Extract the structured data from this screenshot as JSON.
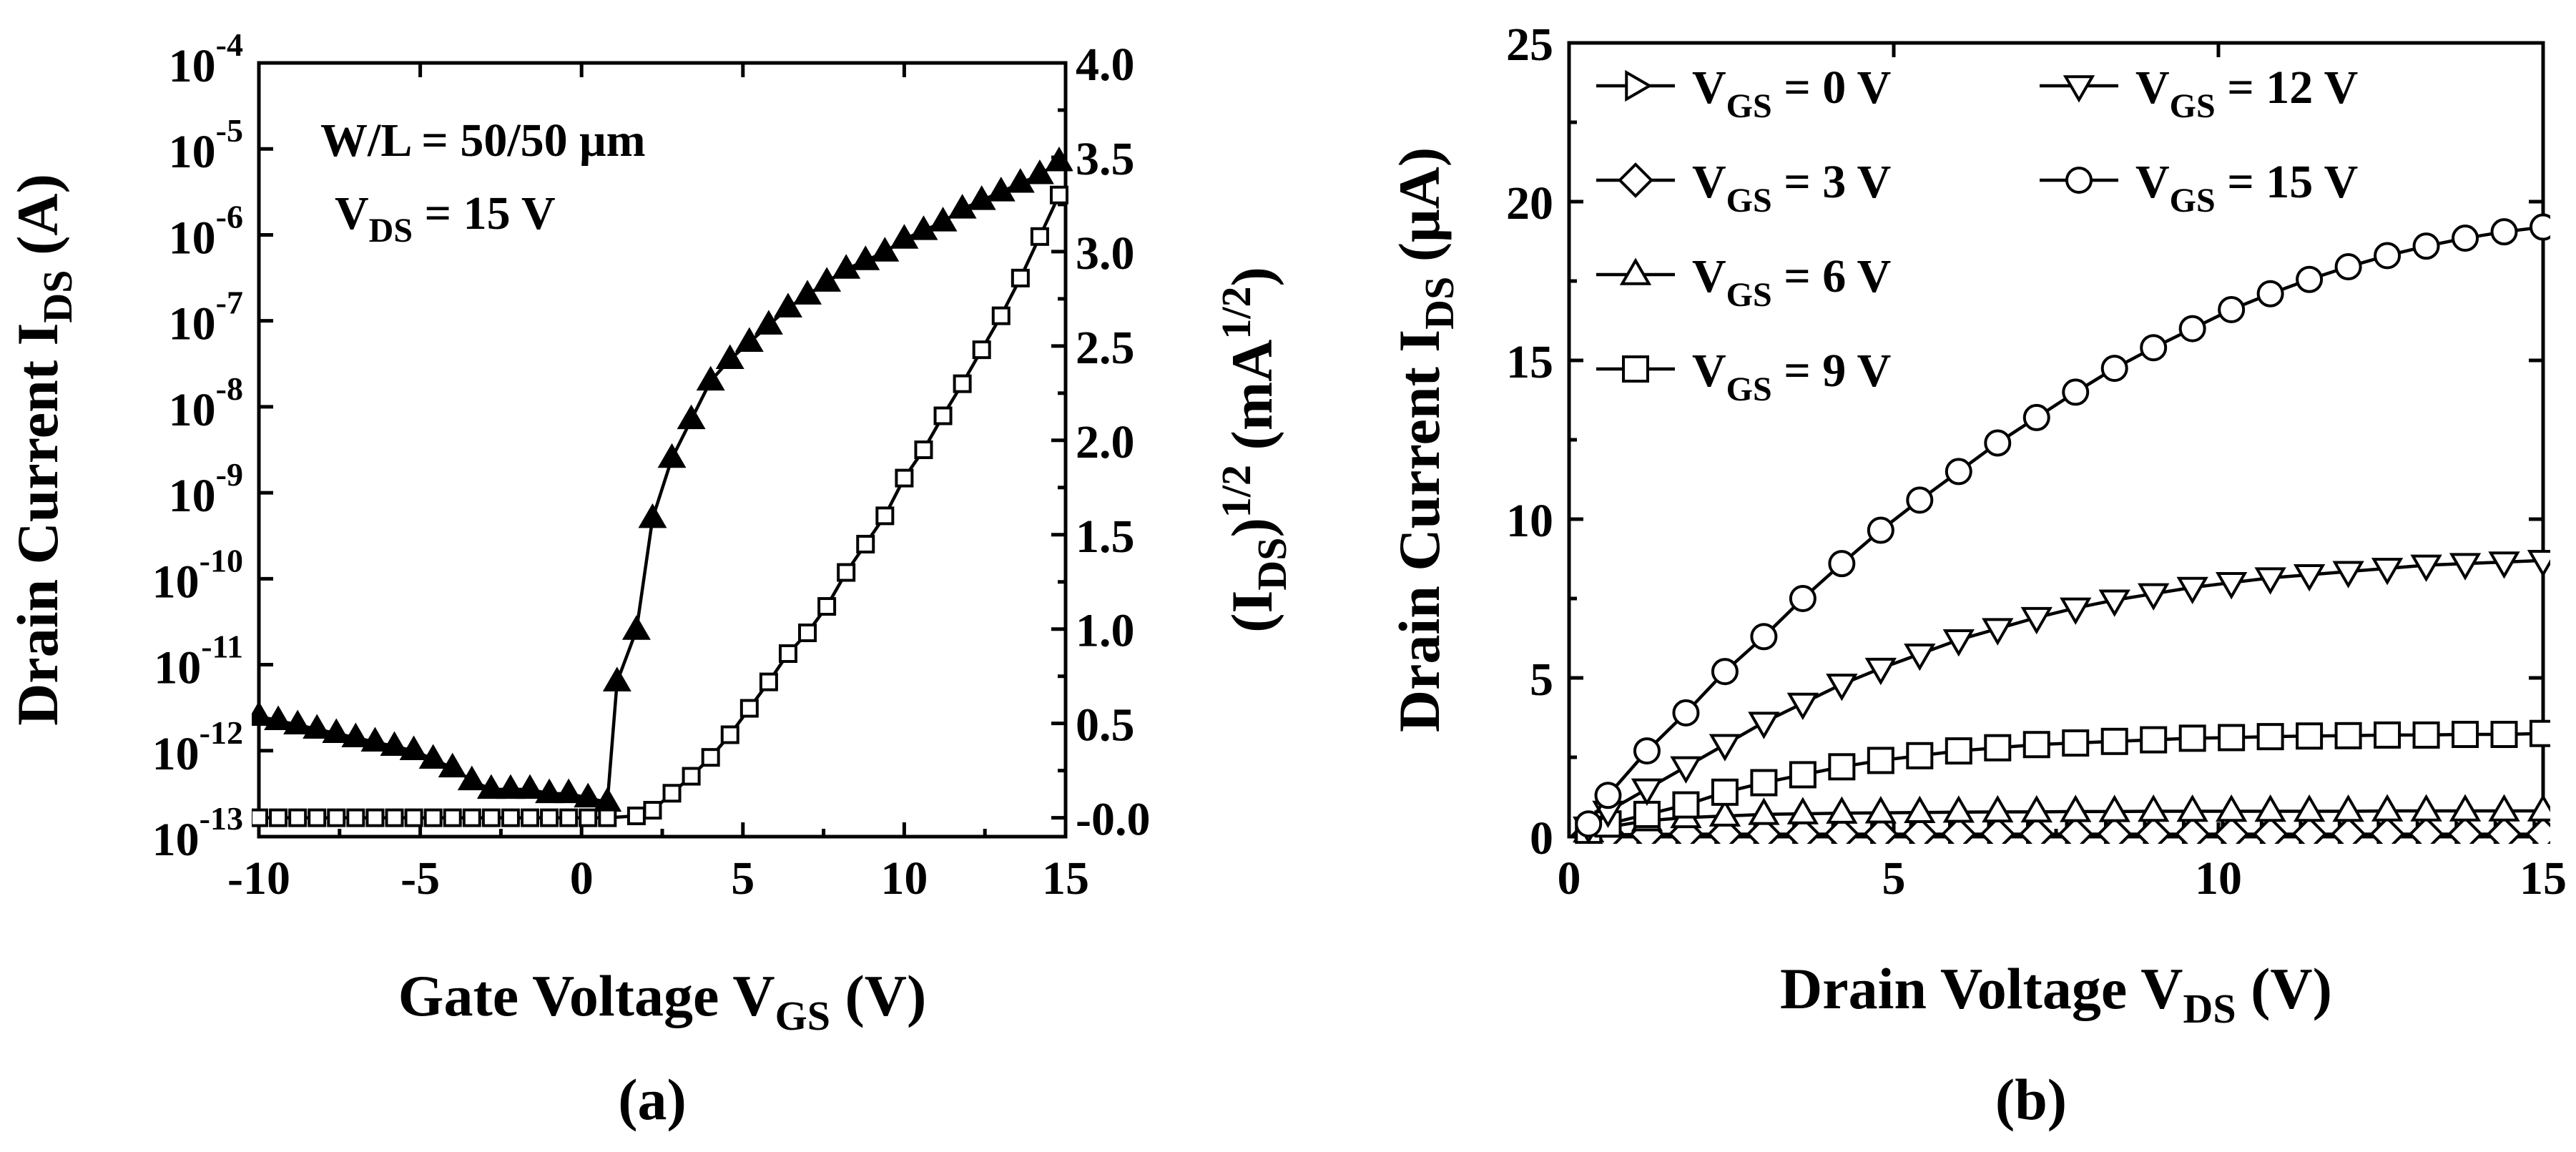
{
  "chart_data": [
    {
      "panel": "(a)",
      "type": "line",
      "title": "",
      "xlabel": "Gate Voltage V_GS (V)",
      "xlabel_parts": {
        "main": "Gate Voltage V",
        "sub": "GS",
        "tail": " (V)"
      },
      "ylabel_left": "Drain Current I_DS (A)",
      "ylabel_left_parts": {
        "main": "Drain Current I",
        "sub": "DS",
        "tail": " (A)"
      },
      "ylabel_right": "(I_DS)^1/2 (mA^1/2)",
      "ylabel_right_parts": {
        "p1": "(I",
        "sub": "DS",
        "p2": ")",
        "sup1": "1/2",
        "p3": " (mA",
        "sup2": "1/2",
        "p4": ")"
      },
      "xlim": [
        -10,
        15
      ],
      "xticks": [
        -10,
        -5,
        0,
        5,
        10,
        15
      ],
      "xtick_labels": [
        "-10",
        "-5",
        "0",
        "5",
        "10",
        "15"
      ],
      "ylim_left_log_exponent": [
        -13,
        -4
      ],
      "ytick_left_exponents": [
        "-13",
        "-12",
        "-11",
        "-10",
        "-9",
        "-8",
        "-7",
        "-6",
        "-5",
        "-4"
      ],
      "ytick_left_base": "10",
      "ylim_right": [
        -0.1,
        4.0
      ],
      "ytick_right_labels": [
        "-0.0",
        "0.5",
        "1.0",
        "1.5",
        "2.0",
        "2.5",
        "3.0",
        "3.5",
        "4.0"
      ],
      "ytick_right_values": [
        0.0,
        0.5,
        1.0,
        1.5,
        2.0,
        2.5,
        3.0,
        3.5,
        4.0
      ],
      "annotations": {
        "line1": "W/L = 50/50 μm",
        "line2_main": "V",
        "line2_sub": "DS",
        "line2_tail": " = 15 V"
      },
      "series": [
        {
          "name": "I_DS (log, left axis)",
          "marker": "filled-triangle-up",
          "x": [
            -10,
            -9.4,
            -8.8,
            -8.2,
            -7.6,
            -7.0,
            -6.4,
            -5.8,
            -5.2,
            -4.6,
            -4.0,
            -3.4,
            -2.8,
            -2.2,
            -1.6,
            -1.0,
            -0.4,
            0.2,
            0.8,
            1.1,
            1.7,
            2.2,
            2.8,
            3.4,
            4.0,
            4.6,
            5.2,
            5.8,
            6.4,
            7.0,
            7.6,
            8.2,
            8.8,
            9.4,
            10.0,
            10.6,
            11.2,
            11.8,
            12.4,
            13.0,
            13.6,
            14.2,
            14.8
          ],
          "log10_y": [
            -11.6,
            -11.65,
            -11.7,
            -11.75,
            -11.8,
            -11.85,
            -11.9,
            -11.95,
            -12.0,
            -12.1,
            -12.2,
            -12.35,
            -12.45,
            -12.45,
            -12.45,
            -12.5,
            -12.5,
            -12.55,
            -12.6,
            -11.2,
            -10.6,
            -9.3,
            -8.6,
            -8.15,
            -7.7,
            -7.45,
            -7.25,
            -7.05,
            -6.85,
            -6.7,
            -6.55,
            -6.4,
            -6.3,
            -6.2,
            -6.05,
            -5.95,
            -5.85,
            -5.7,
            -5.6,
            -5.5,
            -5.4,
            -5.3,
            -5.15
          ]
        },
        {
          "name": "(I_DS)^1/2 (right axis)",
          "marker": "open-square",
          "x": [
            -10,
            -9.4,
            -8.8,
            -8.2,
            -7.6,
            -7.0,
            -6.4,
            -5.8,
            -5.2,
            -4.6,
            -4.0,
            -3.4,
            -2.8,
            -2.2,
            -1.6,
            -1.0,
            -0.4,
            0.2,
            0.8,
            1.7,
            2.2,
            2.8,
            3.4,
            4.0,
            4.6,
            5.2,
            5.8,
            6.4,
            7.0,
            7.6,
            8.2,
            8.8,
            9.4,
            10.0,
            10.6,
            11.2,
            11.8,
            12.4,
            13.0,
            13.6,
            14.2,
            14.8
          ],
          "y": [
            0.0,
            0.0,
            0.0,
            0.0,
            0.0,
            0.0,
            0.0,
            0.0,
            0.0,
            0.0,
            0.0,
            0.0,
            0.0,
            0.0,
            0.0,
            0.0,
            0.0,
            0.0,
            0.0,
            0.01,
            0.04,
            0.13,
            0.22,
            0.32,
            0.44,
            0.58,
            0.72,
            0.87,
            0.98,
            1.12,
            1.3,
            1.45,
            1.6,
            1.8,
            1.95,
            2.13,
            2.3,
            2.48,
            2.66,
            2.86,
            3.08,
            3.3
          ]
        }
      ]
    },
    {
      "panel": "(b)",
      "type": "line",
      "title": "",
      "xlabel": "Drain Voltage V_DS (V)",
      "xlabel_parts": {
        "main": "Drain Voltage V",
        "sub": "DS",
        "tail": " (V)"
      },
      "ylabel": "Drain Current I_DS (μA)",
      "ylabel_parts": {
        "main": "Drain Current I",
        "sub": "DS",
        "tail": " (μA)"
      },
      "xlim": [
        0,
        15
      ],
      "xticks": [
        0,
        5,
        10,
        15
      ],
      "xtick_labels": [
        "0",
        "5",
        "10",
        "15"
      ],
      "ylim": [
        0,
        25
      ],
      "yticks": [
        0,
        5,
        10,
        15,
        20,
        25
      ],
      "ytick_labels": [
        "0",
        "5",
        "10",
        "15",
        "20",
        "25"
      ],
      "legend_position": "top-left",
      "series": [
        {
          "name": "V_GS = 0 V",
          "label_main": "V",
          "label_sub": "GS",
          "label_tail": " = 0 V",
          "marker": "triangle-right",
          "x": [
            0.3,
            0.6,
            1.2,
            1.8,
            2.4,
            3.0,
            3.6,
            4.2,
            4.8,
            5.4,
            6.0,
            6.6,
            7.2,
            7.8,
            8.4,
            9.0,
            9.6,
            10.2,
            10.8,
            11.4,
            12.0,
            12.6,
            13.2,
            13.8,
            14.4,
            15.0
          ],
          "y": [
            0.02,
            0.02,
            0.02,
            0.02,
            0.02,
            0.02,
            0.02,
            0.02,
            0.02,
            0.02,
            0.02,
            0.02,
            0.02,
            0.02,
            0.02,
            0.02,
            0.02,
            0.02,
            0.02,
            0.02,
            0.02,
            0.02,
            0.02,
            0.02,
            0.02,
            0.02
          ]
        },
        {
          "name": "V_GS = 3 V",
          "label_main": "V",
          "label_sub": "GS",
          "label_tail": " = 3 V",
          "marker": "diamond",
          "x": [
            0.3,
            0.6,
            1.2,
            1.8,
            2.4,
            3.0,
            3.6,
            4.2,
            4.8,
            5.4,
            6.0,
            6.6,
            7.2,
            7.8,
            8.4,
            9.0,
            9.6,
            10.2,
            10.8,
            11.4,
            12.0,
            12.6,
            13.2,
            13.8,
            14.4,
            15.0
          ],
          "y": [
            0.05,
            0.06,
            0.07,
            0.08,
            0.08,
            0.08,
            0.08,
            0.08,
            0.08,
            0.08,
            0.08,
            0.08,
            0.08,
            0.08,
            0.08,
            0.08,
            0.08,
            0.08,
            0.08,
            0.08,
            0.08,
            0.08,
            0.08,
            0.08,
            0.08,
            0.08
          ]
        },
        {
          "name": "V_GS = 6 V",
          "label_main": "V",
          "label_sub": "GS",
          "label_tail": " = 6 V",
          "marker": "triangle-up",
          "x": [
            0.3,
            0.6,
            1.2,
            1.8,
            2.4,
            3.0,
            3.6,
            4.2,
            4.8,
            5.4,
            6.0,
            6.6,
            7.2,
            7.8,
            8.4,
            9.0,
            9.6,
            10.2,
            10.8,
            11.4,
            12.0,
            12.6,
            13.2,
            13.8,
            14.4,
            15.0
          ],
          "y": [
            0.15,
            0.3,
            0.5,
            0.6,
            0.65,
            0.7,
            0.72,
            0.74,
            0.75,
            0.76,
            0.77,
            0.78,
            0.78,
            0.79,
            0.79,
            0.8,
            0.8,
            0.8,
            0.8,
            0.8,
            0.8,
            0.81,
            0.81,
            0.81,
            0.81,
            0.81
          ]
        },
        {
          "name": "V_GS = 9 V",
          "label_main": "V",
          "label_sub": "GS",
          "label_tail": " = 9 V",
          "marker": "square",
          "x": [
            0.3,
            0.6,
            1.2,
            1.8,
            2.4,
            3.0,
            3.6,
            4.2,
            4.8,
            5.4,
            6.0,
            6.6,
            7.2,
            7.8,
            8.4,
            9.0,
            9.6,
            10.2,
            10.8,
            11.4,
            12.0,
            12.6,
            13.2,
            13.8,
            14.4,
            15.0
          ],
          "y": [
            0.2,
            0.4,
            0.7,
            1.0,
            1.4,
            1.7,
            1.95,
            2.2,
            2.4,
            2.55,
            2.7,
            2.8,
            2.9,
            2.95,
            3.0,
            3.05,
            3.1,
            3.12,
            3.15,
            3.17,
            3.18,
            3.2,
            3.2,
            3.22,
            3.22,
            3.25
          ]
        },
        {
          "name": "V_GS = 12 V",
          "label_main": "V",
          "label_sub": "GS",
          "label_tail": " = 12 V",
          "marker": "triangle-down",
          "x": [
            0.3,
            0.6,
            1.2,
            1.8,
            2.4,
            3.0,
            3.6,
            4.2,
            4.8,
            5.4,
            6.0,
            6.6,
            7.2,
            7.8,
            8.4,
            9.0,
            9.6,
            10.2,
            10.8,
            11.4,
            12.0,
            12.6,
            13.2,
            13.8,
            14.4,
            15.0
          ],
          "y": [
            0.3,
            0.8,
            1.5,
            2.2,
            2.9,
            3.6,
            4.2,
            4.8,
            5.3,
            5.75,
            6.2,
            6.55,
            6.9,
            7.2,
            7.45,
            7.65,
            7.85,
            8.0,
            8.15,
            8.25,
            8.35,
            8.45,
            8.55,
            8.6,
            8.65,
            8.7
          ]
        },
        {
          "name": "V_GS = 15 V",
          "label_main": "V",
          "label_sub": "GS",
          "label_tail": " = 15 V",
          "marker": "circle",
          "x": [
            0.3,
            0.6,
            1.2,
            1.8,
            2.4,
            3.0,
            3.6,
            4.2,
            4.8,
            5.4,
            6.0,
            6.6,
            7.2,
            7.8,
            8.4,
            9.0,
            9.6,
            10.2,
            10.8,
            11.4,
            12.0,
            12.6,
            13.2,
            13.8,
            14.4,
            15.0
          ],
          "y": [
            0.4,
            1.3,
            2.7,
            3.9,
            5.2,
            6.3,
            7.5,
            8.6,
            9.65,
            10.6,
            11.5,
            12.4,
            13.2,
            14.0,
            14.75,
            15.4,
            16.0,
            16.6,
            17.1,
            17.55,
            17.95,
            18.3,
            18.6,
            18.85,
            19.05,
            19.2
          ]
        }
      ]
    }
  ]
}
